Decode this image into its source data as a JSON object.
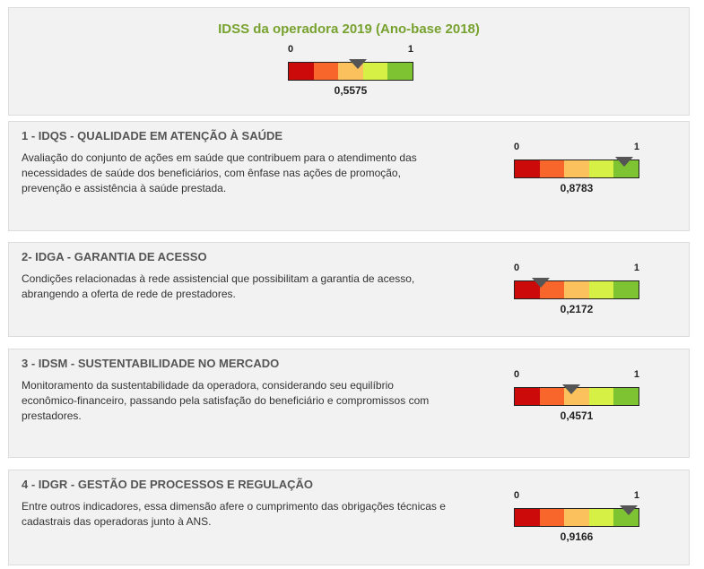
{
  "colors": {
    "title_green": "#78a22f",
    "segments": [
      "#cc0a0a",
      "#f8662b",
      "#fbc15c",
      "#d6f046",
      "#7ec331"
    ],
    "marker": "#555555"
  },
  "overall": {
    "title": "IDSS da operadora 2019 (Ano-base 2018)",
    "min_label": "0",
    "max_label": "1",
    "value": 0.5575,
    "value_text": "0,5575"
  },
  "sections": [
    {
      "title": "1 - IDQS - QUALIDADE EM ATENÇÃO À SAÚDE",
      "description": "Avaliação do conjunto de ações em saúde que contribuem para o atendimento das necessidades de saúde dos beneficiários, com ênfase nas ações de promoção, prevenção e assistência à saúde prestada.",
      "min_label": "0",
      "max_label": "1",
      "value": 0.8783,
      "value_text": "0,8783"
    },
    {
      "title": "2- IDGA - GARANTIA DE ACESSO",
      "description": "Condições relacionadas à rede assistencial que possibilitam a garantia de acesso, abrangendo a oferta de rede de prestadores.",
      "min_label": "0",
      "max_label": "1",
      "value": 0.2172,
      "value_text": "0,2172"
    },
    {
      "title": "3 - IDSM - SUSTENTABILIDADE NO MERCADO",
      "description": "Monitoramento da sustentabilidade da operadora, considerando seu equilíbrio econômico-financeiro, passando pela satisfação do beneficiário e compromissos com prestadores.",
      "min_label": "0",
      "max_label": "1",
      "value": 0.4571,
      "value_text": "0,4571"
    },
    {
      "title": "4 - IDGR - GESTÃO DE PROCESSOS E REGULAÇÃO",
      "description": "Entre outros indicadores, essa dimensão afere o cumprimento das obrigações técnicas e cadastrais das operadoras junto à ANS.",
      "min_label": "0",
      "max_label": "1",
      "value": 0.9166,
      "value_text": "0,9166"
    }
  ]
}
